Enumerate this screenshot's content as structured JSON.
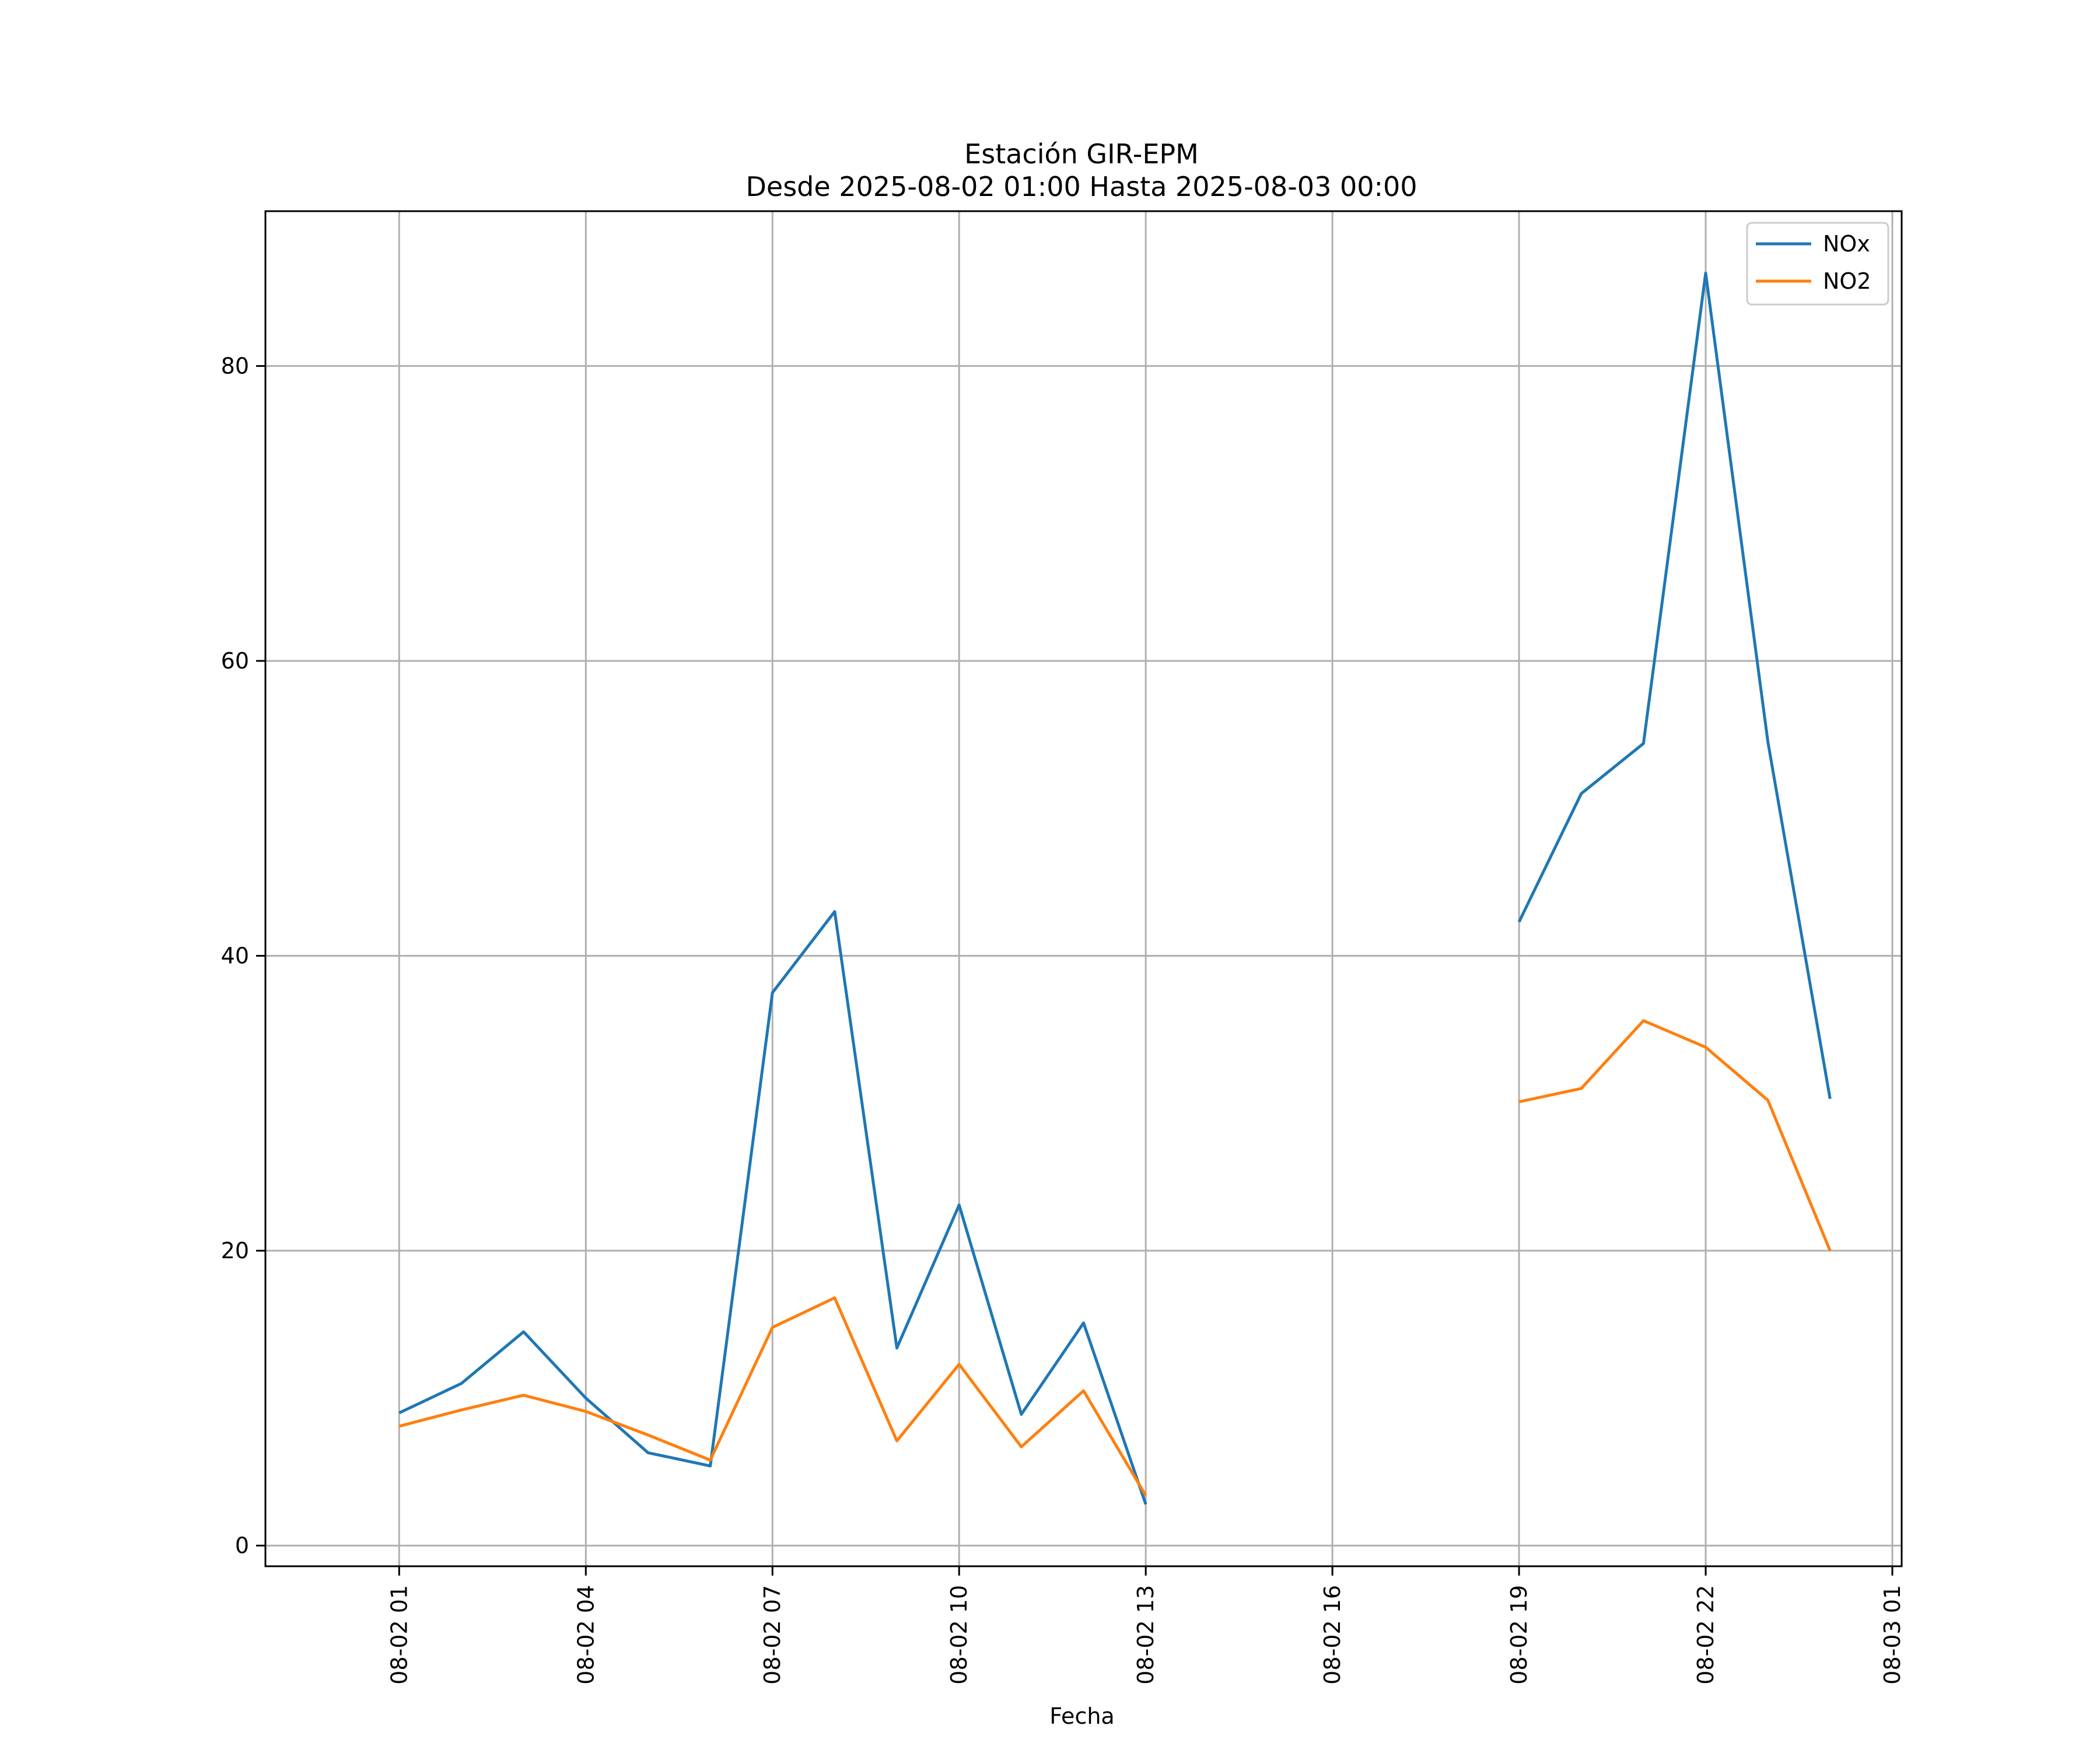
{
  "chart_data": {
    "type": "line",
    "title": "Estación GIR-EPM",
    "subtitle": "Desde 2025-08-02 01:00 Hasta 2025-08-03 00:00",
    "xlabel": "Fecha",
    "ylabel": "",
    "x": [
      "2025-08-02 01:00",
      "2025-08-02 02:00",
      "2025-08-02 03:00",
      "2025-08-02 04:00",
      "2025-08-02 05:00",
      "2025-08-02 06:00",
      "2025-08-02 07:00",
      "2025-08-02 08:00",
      "2025-08-02 09:00",
      "2025-08-02 10:00",
      "2025-08-02 11:00",
      "2025-08-02 12:00",
      "2025-08-02 13:00",
      "2025-08-02 14:00",
      "2025-08-02 15:00",
      "2025-08-02 16:00",
      "2025-08-02 17:00",
      "2025-08-02 18:00",
      "2025-08-02 19:00",
      "2025-08-02 20:00",
      "2025-08-02 21:00",
      "2025-08-02 22:00",
      "2025-08-02 23:00",
      "2025-08-03 00:00"
    ],
    "series": [
      {
        "name": "NOx",
        "color": "#1f77b4",
        "values": [
          9.0,
          11.0,
          14.5,
          10.0,
          6.3,
          5.4,
          37.5,
          43.0,
          13.4,
          23.1,
          8.9,
          15.1,
          2.8,
          null,
          null,
          null,
          null,
          null,
          42.3,
          51.0,
          54.4,
          86.3,
          54.5,
          30.3
        ]
      },
      {
        "name": "NO2",
        "color": "#ff7f0e",
        "values": [
          8.1,
          9.2,
          10.2,
          9.1,
          7.5,
          5.8,
          14.8,
          16.8,
          7.1,
          12.3,
          6.7,
          10.5,
          3.4,
          null,
          null,
          null,
          null,
          null,
          30.1,
          31.0,
          35.6,
          33.8,
          30.2,
          20.0
        ]
      }
    ],
    "x_ticks": [
      "08-02 01",
      "08-02 04",
      "08-02 07",
      "08-02 10",
      "08-02 13",
      "08-02 16",
      "08-02 19",
      "08-02 22",
      "08-03 01"
    ],
    "y_ticks": [
      0,
      20,
      40,
      60,
      80
    ],
    "xlim": [
      "2025-08-01 22:51",
      "2025-08-03 01:09"
    ],
    "ylim": [
      -1.4,
      90.5
    ],
    "grid": true,
    "legend_position": "upper right"
  }
}
